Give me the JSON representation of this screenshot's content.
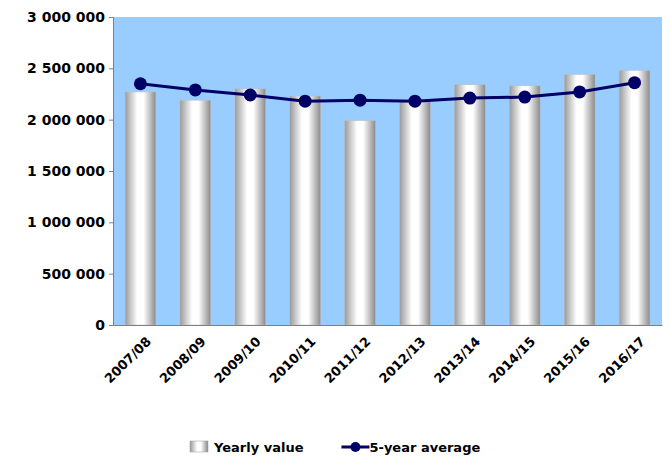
{
  "chart_data": {
    "type": "bar",
    "categories": [
      "2007/08",
      "2008/09",
      "2009/10",
      "2010/11",
      "2011/12",
      "2012/13",
      "2013/14",
      "2014/15",
      "2015/16",
      "2016/17"
    ],
    "series": [
      {
        "name": "Yearly value",
        "type": "bar",
        "color": "#ffffff",
        "values": [
          2270000,
          2190000,
          2300000,
          2230000,
          1990000,
          2180000,
          2340000,
          2330000,
          2440000,
          2480000
        ]
      },
      {
        "name": "5-year average",
        "type": "line",
        "color": "#000066",
        "marker": "circle",
        "values": [
          2350000,
          2290000,
          2240000,
          2180000,
          2190000,
          2180000,
          2210000,
          2220000,
          2270000,
          2360000
        ]
      }
    ],
    "ylim": [
      0,
      3000000
    ],
    "yticks": [
      0,
      {
        "value": 500000,
        "label": "500 000"
      },
      {
        "value": 1000000,
        "label": "1 000 000"
      },
      {
        "value": 1500000,
        "label": "1 500 000"
      },
      {
        "value": 2000000,
        "label": "2 000 000"
      },
      {
        "value": 2500000,
        "label": "2 500 000"
      },
      {
        "value": 3000000,
        "label": "3 000 000"
      }
    ],
    "grid": false,
    "legend": "bottom"
  }
}
